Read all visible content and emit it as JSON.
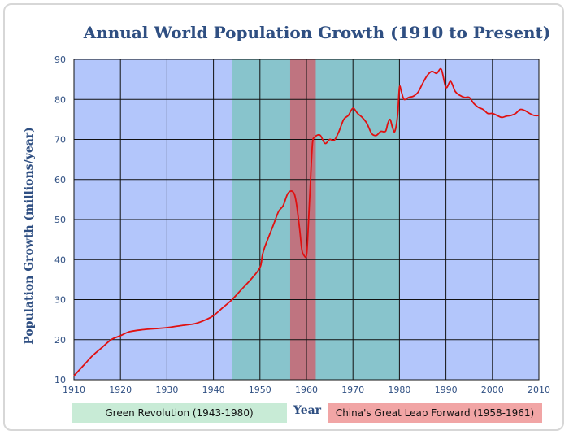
{
  "chart_data": {
    "type": "line",
    "title": "Annual World Population Growth (1910 to Present)",
    "xlabel": "Year",
    "ylabel": "Population Growth (millions/year)",
    "xlim": [
      1910,
      2010
    ],
    "ylim": [
      10,
      90
    ],
    "x_ticks": [
      1910,
      1920,
      1930,
      1940,
      1950,
      1960,
      1970,
      1980,
      1990,
      2000,
      2010
    ],
    "y_ticks": [
      10,
      20,
      30,
      40,
      50,
      60,
      70,
      80,
      90
    ],
    "grid": true,
    "colors": {
      "background": "#b3c6fb",
      "line": "#e01010",
      "green_band": "#88c4cc",
      "red_band": "#bf7480"
    },
    "bands": [
      {
        "start": 1944,
        "end": 1980,
        "label": "Green Revolution (1943-1980)",
        "color": "#88c4cc"
      },
      {
        "start": 1956.5,
        "end": 1962,
        "label": "China's Great Leap Forward (1958-1961)",
        "color": "#bf7480"
      }
    ],
    "series": [
      {
        "x": [
          1910,
          1912,
          1914,
          1916,
          1918,
          1920,
          1922,
          1925,
          1928,
          1930,
          1933,
          1936,
          1938,
          1940,
          1942,
          1944,
          1946,
          1948,
          1950,
          1950.5,
          1951,
          1952,
          1953,
          1954,
          1955,
          1956,
          1957,
          1957.7,
          1958.5,
          1959,
          1959.5,
          1960,
          1960.3,
          1960.8,
          1961.3,
          1961.8,
          1962.2,
          1963,
          1964,
          1965,
          1966,
          1967,
          1968,
          1969,
          1970,
          1971,
          1972,
          1973,
          1974,
          1975,
          1976,
          1977,
          1977.5,
          1978,
          1978.5,
          1979,
          1979.6,
          1980,
          1980.4,
          1981,
          1982,
          1983,
          1984,
          1985,
          1986,
          1987,
          1988,
          1989,
          1990,
          1991,
          1992,
          1993,
          1994,
          1995,
          1996,
          1997,
          1998,
          1999,
          2000,
          2001,
          2002,
          2003,
          2004,
          2005,
          2006,
          2007,
          2008,
          2009,
          2010
        ],
        "values": [
          11,
          13.5,
          16,
          18,
          20,
          21,
          22,
          22.5,
          22.8,
          23,
          23.5,
          24,
          24.8,
          26,
          28,
          30,
          32.5,
          35,
          38,
          41,
          43,
          46,
          49,
          52,
          53.5,
          56.5,
          57,
          55,
          48,
          42.5,
          41,
          41,
          46,
          58,
          69,
          70.5,
          71,
          71,
          69,
          70,
          69.8,
          72,
          75,
          76,
          77.8,
          76.5,
          75.5,
          74,
          71.5,
          71,
          72,
          72,
          74,
          75,
          73,
          72,
          76,
          83,
          82,
          80,
          80.5,
          80.8,
          81.8,
          84,
          86,
          87,
          86.5,
          87.5,
          83,
          84.5,
          82,
          81,
          80.5,
          80.5,
          79,
          78,
          77.5,
          76.5,
          76.5,
          76,
          75.5,
          75.8,
          76,
          76.5,
          77.5,
          77.2,
          76.5,
          76,
          76
        ]
      }
    ]
  }
}
